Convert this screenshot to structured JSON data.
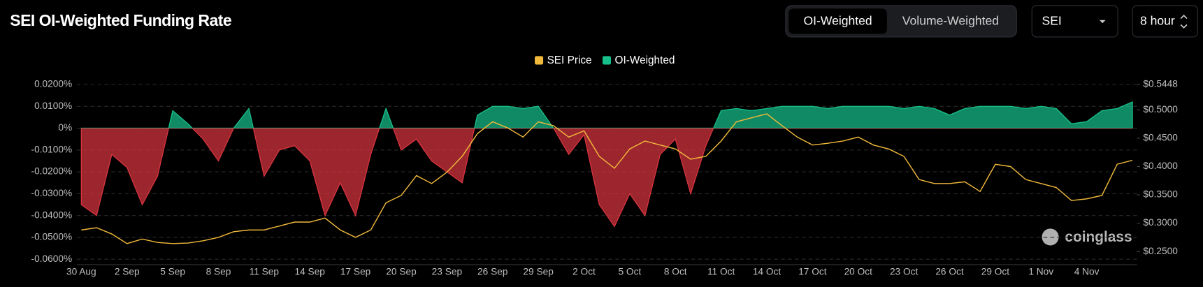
{
  "ui": {
    "toggle": [
      "OI-Weighted",
      "Volume-Weighted"
    ],
    "symbol": "SEI",
    "interval": "8 hour",
    "watermark": "coinglass"
  },
  "chart_data": {
    "type": "funding",
    "title": "SEI OI-Weighted Funding Rate",
    "categories": [
      "30 Aug",
      null,
      null,
      "2 Sep",
      null,
      null,
      "5 Sep",
      null,
      null,
      "8 Sep",
      null,
      null,
      "11 Sep",
      null,
      null,
      "14 Sep",
      null,
      null,
      "17 Sep",
      null,
      null,
      "20 Sep",
      null,
      null,
      "23 Sep",
      null,
      null,
      "26 Sep",
      null,
      null,
      "29 Sep",
      null,
      null,
      "2 Oct",
      null,
      null,
      "5 Oct",
      null,
      null,
      "8 Oct",
      null,
      null,
      "11 Oct",
      null,
      null,
      "14 Oct",
      null,
      null,
      "17 Oct",
      null,
      null,
      "20 Oct",
      null,
      null,
      "23 Oct",
      null,
      null,
      "26 Oct",
      null,
      null,
      "29 Oct",
      null,
      null,
      "1 Nov",
      null,
      null,
      "4 Nov",
      null,
      null,
      null
    ],
    "series": [
      {
        "name": "SEI Price",
        "color": "#f0b93b",
        "axis": "y2",
        "values": [
          0.288,
          0.292,
          0.281,
          0.264,
          0.272,
          0.266,
          0.264,
          0.265,
          0.269,
          0.275,
          0.285,
          0.288,
          0.288,
          0.295,
          0.302,
          0.302,
          0.309,
          0.288,
          0.275,
          0.288,
          0.336,
          0.349,
          0.384,
          0.37,
          0.39,
          0.418,
          0.458,
          0.479,
          0.468,
          0.452,
          0.479,
          0.472,
          0.452,
          0.463,
          0.418,
          0.397,
          0.431,
          0.445,
          0.438,
          0.431,
          0.413,
          0.418,
          0.445,
          0.479,
          0.486,
          0.493,
          0.472,
          0.452,
          0.438,
          0.441,
          0.445,
          0.452,
          0.438,
          0.431,
          0.418,
          0.377,
          0.37,
          0.37,
          0.373,
          0.356,
          0.404,
          0.4,
          0.377,
          0.37,
          0.363,
          0.34,
          0.343,
          0.349,
          0.404,
          0.411
        ]
      },
      {
        "name": "OI-Weighted",
        "color": "#17c08a",
        "negative_color": "#d9343f",
        "values": [
          -0.035,
          -0.04,
          -0.012,
          -0.018,
          -0.035,
          -0.022,
          0.008,
          0.002,
          -0.005,
          -0.015,
          0.0,
          0.009,
          -0.022,
          -0.01,
          -0.008,
          -0.015,
          -0.04,
          -0.025,
          -0.04,
          -0.012,
          0.009,
          -0.01,
          -0.005,
          -0.015,
          -0.02,
          -0.025,
          0.006,
          0.01,
          0.01,
          0.009,
          0.01,
          0.0,
          -0.012,
          -0.003,
          -0.035,
          -0.045,
          -0.03,
          -0.04,
          -0.012,
          -0.005,
          -0.03,
          -0.008,
          0.008,
          0.009,
          0.008,
          0.009,
          0.01,
          0.01,
          0.01,
          0.009,
          0.01,
          0.01,
          0.01,
          0.01,
          0.009,
          0.01,
          0.009,
          0.006,
          0.009,
          0.01,
          0.01,
          0.01,
          0.009,
          0.01,
          0.009,
          0.002,
          0.003,
          0.008,
          0.009,
          0.012
        ]
      }
    ],
    "ylim": [
      -0.06,
      0.02
    ],
    "yticks": [
      {
        "value": 0.02,
        "label": "0.0200%"
      },
      {
        "value": 0.01,
        "label": "0.0100%"
      },
      {
        "value": 0,
        "label": "0%"
      },
      {
        "value": -0.01,
        "label": "-0.0100%"
      },
      {
        "value": -0.02,
        "label": "-0.0200%"
      },
      {
        "value": -0.03,
        "label": "-0.0300%"
      },
      {
        "value": -0.04,
        "label": "-0.0400%"
      },
      {
        "value": -0.05,
        "label": "-0.0500%"
      },
      {
        "value": -0.06,
        "label": "-0.0600%"
      }
    ],
    "y2lim": [
      0.2364,
      0.5448
    ],
    "y2ticks": [
      {
        "value": 0.5448,
        "label": "$0.5448"
      },
      {
        "value": 0.5,
        "label": "$0.5000"
      },
      {
        "value": 0.45,
        "label": "$0.4500"
      },
      {
        "value": 0.4,
        "label": "$0.4000"
      },
      {
        "value": 0.35,
        "label": "$0.3500"
      },
      {
        "value": 0.3,
        "label": "$0.3000"
      },
      {
        "value": 0.25,
        "label": "$0.2500"
      }
    ],
    "grid": true,
    "legend": "top"
  }
}
